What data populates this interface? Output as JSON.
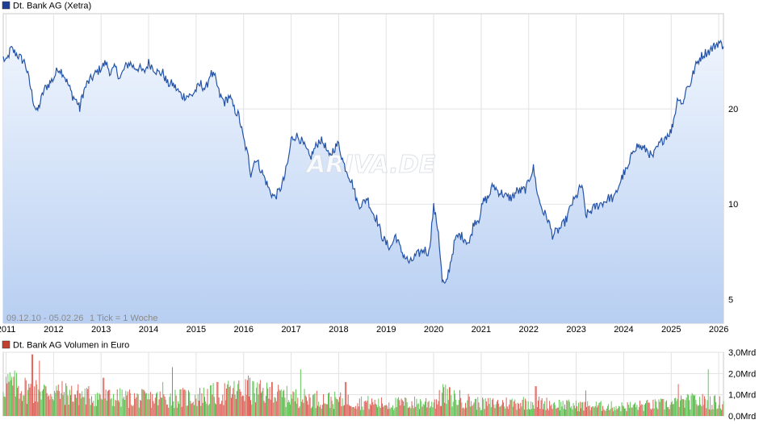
{
  "chart_data": [
    {
      "type": "line",
      "legend": "Dt. Bank AG (Xetra)",
      "period_label": "09.12.10 - 05.02.26",
      "tick_label": "1 Tick = 1 Woche",
      "watermark": "ARIVA.DE",
      "line_color": "#2453a8",
      "legend_color": "#1f3f95",
      "fill_top": "#eef4fd",
      "fill_bottom": "#b8cff2",
      "y_scale": "log",
      "y_range": [
        4.2,
        40
      ],
      "y_ticks": [
        {
          "v": 5,
          "label": "5"
        },
        {
          "v": 10,
          "label": "10"
        },
        {
          "v": 20,
          "label": "20"
        }
      ],
      "x_range": [
        2010.94,
        2026.1
      ],
      "x_ticks": [
        {
          "v": 2011,
          "label": "2011"
        },
        {
          "v": 2012,
          "label": "2012"
        },
        {
          "v": 2013,
          "label": "2013"
        },
        {
          "v": 2014,
          "label": "2014"
        },
        {
          "v": 2015,
          "label": "2015"
        },
        {
          "v": 2016,
          "label": "2016"
        },
        {
          "v": 2017,
          "label": "2017"
        },
        {
          "v": 2018,
          "label": "2018"
        },
        {
          "v": 2019,
          "label": "2019"
        },
        {
          "v": 2020,
          "label": "2020"
        },
        {
          "v": 2021,
          "label": "2021"
        },
        {
          "v": 2022,
          "label": "2022"
        },
        {
          "v": 2023,
          "label": "2023"
        },
        {
          "v": 2024,
          "label": "2024"
        },
        {
          "v": 2025,
          "label": "2025"
        },
        {
          "v": 2026,
          "label": "2026"
        }
      ],
      "grid": true,
      "points": [
        [
          2010.94,
          29
        ],
        [
          2011.0,
          28
        ],
        [
          2011.1,
          31
        ],
        [
          2011.2,
          30
        ],
        [
          2011.3,
          29
        ],
        [
          2011.4,
          28
        ],
        [
          2011.5,
          24
        ],
        [
          2011.58,
          21
        ],
        [
          2011.65,
          19.5
        ],
        [
          2011.72,
          21
        ],
        [
          2011.8,
          23
        ],
        [
          2011.9,
          24
        ],
        [
          2012.0,
          25
        ],
        [
          2012.1,
          27
        ],
        [
          2012.2,
          26
        ],
        [
          2012.3,
          24
        ],
        [
          2012.4,
          22
        ],
        [
          2012.5,
          21
        ],
        [
          2012.55,
          20
        ],
        [
          2012.6,
          22
        ],
        [
          2012.7,
          24
        ],
        [
          2012.8,
          25
        ],
        [
          2012.9,
          26
        ],
        [
          2013.0,
          27
        ],
        [
          2013.1,
          28
        ],
        [
          2013.2,
          26
        ],
        [
          2013.3,
          27
        ],
        [
          2013.4,
          25
        ],
        [
          2013.5,
          27
        ],
        [
          2013.6,
          28
        ],
        [
          2013.7,
          27
        ],
        [
          2013.8,
          27
        ],
        [
          2013.9,
          26
        ],
        [
          2014.0,
          28
        ],
        [
          2014.1,
          27
        ],
        [
          2014.2,
          26
        ],
        [
          2014.3,
          26
        ],
        [
          2014.4,
          24
        ],
        [
          2014.5,
          24
        ],
        [
          2014.6,
          23
        ],
        [
          2014.7,
          22
        ],
        [
          2014.8,
          22
        ],
        [
          2014.9,
          22
        ],
        [
          2015.0,
          23
        ],
        [
          2015.1,
          24
        ],
        [
          2015.2,
          23
        ],
        [
          2015.3,
          26
        ],
        [
          2015.4,
          25
        ],
        [
          2015.5,
          22
        ],
        [
          2015.6,
          21
        ],
        [
          2015.7,
          22
        ],
        [
          2015.8,
          20
        ],
        [
          2015.9,
          19
        ],
        [
          2016.0,
          16
        ],
        [
          2016.1,
          14
        ],
        [
          2016.15,
          12.5
        ],
        [
          2016.25,
          14
        ],
        [
          2016.35,
          13
        ],
        [
          2016.45,
          12
        ],
        [
          2016.55,
          11
        ],
        [
          2016.65,
          10.5
        ],
        [
          2016.75,
          11
        ],
        [
          2016.85,
          12
        ],
        [
          2016.95,
          14
        ],
        [
          2017.0,
          16
        ],
        [
          2017.1,
          16.5
        ],
        [
          2017.2,
          16
        ],
        [
          2017.3,
          15
        ],
        [
          2017.4,
          14
        ],
        [
          2017.5,
          15
        ],
        [
          2017.6,
          16
        ],
        [
          2017.7,
          15.5
        ],
        [
          2017.8,
          14
        ],
        [
          2017.9,
          15
        ],
        [
          2018.0,
          15.5
        ],
        [
          2018.1,
          13.5
        ],
        [
          2018.2,
          12.5
        ],
        [
          2018.3,
          11.5
        ],
        [
          2018.4,
          10
        ],
        [
          2018.5,
          10
        ],
        [
          2018.6,
          10.5
        ],
        [
          2018.7,
          9.5
        ],
        [
          2018.8,
          9
        ],
        [
          2018.9,
          8
        ],
        [
          2019.0,
          7.5
        ],
        [
          2019.1,
          7.3
        ],
        [
          2019.2,
          8
        ],
        [
          2019.3,
          7.2
        ],
        [
          2019.4,
          6.8
        ],
        [
          2019.5,
          6.5
        ],
        [
          2019.6,
          6.8
        ],
        [
          2019.7,
          7.0
        ],
        [
          2019.8,
          7.2
        ],
        [
          2019.9,
          7.0
        ],
        [
          2020.0,
          9.8
        ],
        [
          2020.1,
          8.2
        ],
        [
          2020.18,
          5.7
        ],
        [
          2020.25,
          5.5
        ],
        [
          2020.35,
          6.5
        ],
        [
          2020.45,
          7.7
        ],
        [
          2020.55,
          8.0
        ],
        [
          2020.65,
          7.8
        ],
        [
          2020.75,
          7.5
        ],
        [
          2020.85,
          8.8
        ],
        [
          2020.95,
          9.0
        ],
        [
          2021.05,
          10.2
        ],
        [
          2021.15,
          10.5
        ],
        [
          2021.25,
          11.5
        ],
        [
          2021.35,
          11.0
        ],
        [
          2021.45,
          10.8
        ],
        [
          2021.55,
          10.5
        ],
        [
          2021.65,
          10.5
        ],
        [
          2021.75,
          11.0
        ],
        [
          2021.85,
          11.0
        ],
        [
          2021.95,
          11.2
        ],
        [
          2022.05,
          12.5
        ],
        [
          2022.1,
          13.0
        ],
        [
          2022.2,
          10.5
        ],
        [
          2022.3,
          9.5
        ],
        [
          2022.4,
          9.0
        ],
        [
          2022.5,
          8.0
        ],
        [
          2022.6,
          8.2
        ],
        [
          2022.7,
          8.5
        ],
        [
          2022.8,
          9.0
        ],
        [
          2022.9,
          10.0
        ],
        [
          2023.0,
          10.5
        ],
        [
          2023.05,
          11.0
        ],
        [
          2023.12,
          11.5
        ],
        [
          2023.2,
          9.2
        ],
        [
          2023.3,
          9.5
        ],
        [
          2023.4,
          9.8
        ],
        [
          2023.5,
          10.0
        ],
        [
          2023.6,
          10.2
        ],
        [
          2023.7,
          10.5
        ],
        [
          2023.8,
          10.4
        ],
        [
          2023.9,
          11.5
        ],
        [
          2024.0,
          12.5
        ],
        [
          2024.1,
          13.0
        ],
        [
          2024.2,
          15.0
        ],
        [
          2024.3,
          15.3
        ],
        [
          2024.4,
          15.0
        ],
        [
          2024.5,
          14.8
        ],
        [
          2024.6,
          14.0
        ],
        [
          2024.7,
          15.0
        ],
        [
          2024.8,
          15.8
        ],
        [
          2024.9,
          16.5
        ],
        [
          2025.0,
          17.0
        ],
        [
          2025.05,
          18.5
        ],
        [
          2025.15,
          22.0
        ],
        [
          2025.25,
          20.5
        ],
        [
          2025.3,
          23.0
        ],
        [
          2025.4,
          24.0
        ],
        [
          2025.5,
          27.0
        ],
        [
          2025.6,
          29.0
        ],
        [
          2025.7,
          30.0
        ],
        [
          2025.8,
          30.5
        ],
        [
          2025.9,
          31.5
        ],
        [
          2026.0,
          32.5
        ],
        [
          2026.1,
          31.5
        ]
      ]
    },
    {
      "type": "bar",
      "legend": "Dt. Bank AG Volumen in Euro",
      "legend_color": "#c2412e",
      "up_color": "#55c04a",
      "down_color": "#d9534a",
      "y_range": [
        0,
        3
      ],
      "y_ticks": [
        {
          "v": 0,
          "label": "0,0Mrd"
        },
        {
          "v": 1,
          "label": "1,0Mrd"
        },
        {
          "v": 2,
          "label": "2,0Mrd"
        },
        {
          "v": 3,
          "label": "3,0Mrd"
        }
      ],
      "x_range": [
        2010.94,
        2026.1
      ],
      "grid": true,
      "volume_profile": [
        [
          2011.0,
          1.9
        ],
        [
          2011.5,
          1.5
        ],
        [
          2012.0,
          1.4
        ],
        [
          2013.0,
          1.1
        ],
        [
          2014.0,
          1.0
        ],
        [
          2015.0,
          1.1
        ],
        [
          2016.0,
          1.5
        ],
        [
          2017.0,
          1.1
        ],
        [
          2018.0,
          0.9
        ],
        [
          2019.0,
          0.7
        ],
        [
          2020.0,
          0.8
        ],
        [
          2020.25,
          1.2
        ],
        [
          2021.0,
          0.7
        ],
        [
          2022.0,
          0.8
        ],
        [
          2023.0,
          0.6
        ],
        [
          2024.0,
          0.55
        ],
        [
          2025.0,
          0.7
        ],
        [
          2025.5,
          0.9
        ],
        [
          2026.1,
          0.75
        ]
      ],
      "volume_peaks": [
        [
          2011.55,
          2.9
        ],
        [
          2011.7,
          2.6
        ],
        [
          2013.05,
          1.8
        ],
        [
          2014.3,
          1.6
        ],
        [
          2014.5,
          2.3
        ],
        [
          2015.45,
          1.6
        ],
        [
          2016.1,
          1.9
        ],
        [
          2016.6,
          1.6
        ],
        [
          2017.2,
          2.2
        ],
        [
          2018.15,
          1.6
        ],
        [
          2020.2,
          1.5
        ],
        [
          2022.15,
          1.4
        ],
        [
          2023.2,
          1.2
        ],
        [
          2025.15,
          1.5
        ],
        [
          2025.78,
          2.2
        ]
      ]
    }
  ]
}
